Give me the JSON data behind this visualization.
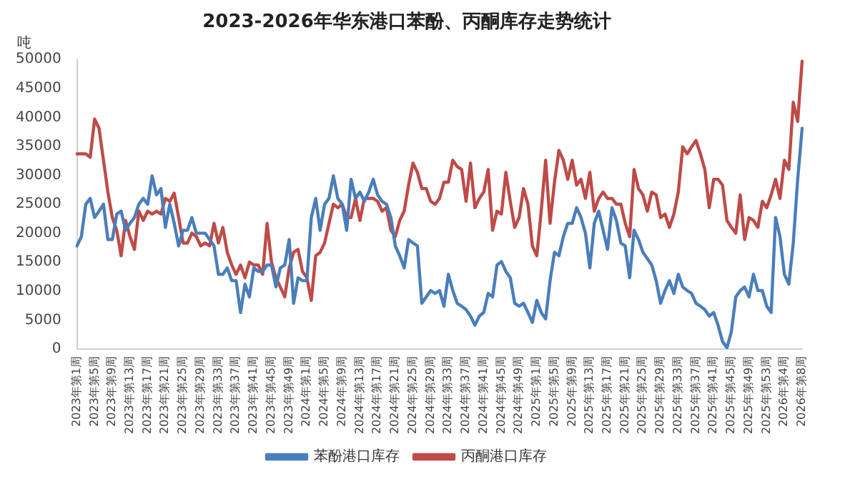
{
  "chart_data": {
    "type": "line",
    "title": "2023-2026年华东港口苯酚、丙酮库存走势统计",
    "ylabel": "吨",
    "categories": [
      "2023年第1周",
      null,
      null,
      null,
      "2023年第5周",
      null,
      null,
      null,
      "2023年第9周",
      null,
      null,
      null,
      "2023年第13周",
      null,
      null,
      null,
      "2023年第17周",
      null,
      null,
      null,
      "2023年第21周",
      null,
      null,
      null,
      "2023年第25周",
      null,
      null,
      null,
      "2023年第29周",
      null,
      null,
      null,
      "2023年第33周",
      null,
      null,
      null,
      "2023年第37周",
      null,
      null,
      null,
      "2023年第41周",
      null,
      null,
      null,
      "2023年第45周",
      null,
      null,
      null,
      "2023年第49周",
      null,
      null,
      null,
      "2024年第1周",
      null,
      null,
      null,
      "2024年第5周",
      null,
      null,
      null,
      "2024年第9周",
      null,
      null,
      null,
      "2024年第13周",
      null,
      null,
      null,
      "2024年第17周",
      null,
      null,
      null,
      "2024年第21周",
      null,
      null,
      null,
      "2024年第25周",
      null,
      null,
      null,
      "2024年第29周",
      null,
      null,
      null,
      "2024年第33周",
      null,
      null,
      null,
      "2024年第37周",
      null,
      null,
      null,
      "2024年第41周",
      null,
      null,
      null,
      "2024年第45周",
      null,
      null,
      null,
      "2024年第49周",
      null,
      null,
      null,
      "2025年第1周",
      null,
      null,
      null,
      "2025年第5周",
      null,
      null,
      null,
      "2025年第9周",
      null,
      null,
      null,
      "2025年第13周",
      null,
      null,
      null,
      "2025年第17周",
      null,
      null,
      null,
      "2025年第21周",
      null,
      null,
      null,
      "2025年第25周",
      null,
      null,
      null,
      "2025年第29周",
      null,
      null,
      null,
      "2025年第33周",
      null,
      null,
      null,
      "2025年第37周",
      null,
      null,
      null,
      "2025年第41周",
      null,
      null,
      null,
      "2025年第45周",
      null,
      null,
      null,
      "2025年第49周",
      null,
      null,
      null,
      "2025年第53周",
      null,
      null,
      null,
      "2026年第4周",
      null,
      null,
      null,
      "2026年第8周"
    ],
    "series": [
      {
        "name": "苯酚港口库存",
        "color": "#4a7ebb",
        "values": [
          17800,
          19400,
          25000,
          26000,
          22700,
          23800,
          25000,
          18900,
          18900,
          23300,
          23800,
          20500,
          21700,
          22700,
          25000,
          26000,
          25000,
          29900,
          26600,
          27700,
          21000,
          25000,
          21700,
          17800,
          20500,
          20500,
          22700,
          20000,
          20000,
          20000,
          18900,
          17800,
          12900,
          12900,
          14000,
          11800,
          11800,
          6300,
          11200,
          9000,
          14000,
          13400,
          13400,
          14500,
          14500,
          10700,
          14000,
          14500,
          18900,
          7900,
          12300,
          11800,
          11800,
          22700,
          26000,
          20500,
          25000,
          26000,
          29900,
          26000,
          25000,
          20500,
          29300,
          26000,
          27100,
          25500,
          27100,
          29300,
          26600,
          25500,
          25000,
          22700,
          17800,
          16100,
          14000,
          18900,
          18300,
          17800,
          7900,
          9000,
          10100,
          9600,
          10100,
          7400,
          12900,
          10100,
          7900,
          7400,
          6800,
          5700,
          4100,
          5700,
          6300,
          9600,
          9000,
          14500,
          15100,
          13400,
          12300,
          7900,
          7400,
          7900,
          6300,
          4600,
          8400,
          6300,
          5200,
          11800,
          16700,
          16100,
          19400,
          21700,
          21700,
          24400,
          22700,
          20000,
          14000,
          21700,
          23800,
          20500,
          17200,
          24400,
          22200,
          18300,
          17800,
          12300,
          20500,
          18900,
          16700,
          15600,
          14500,
          11800,
          7900,
          10100,
          11800,
          9600,
          12900,
          10700,
          10100,
          9600,
          7900,
          7400,
          6800,
          5700,
          6300,
          4100,
          1300,
          200,
          3000,
          9000,
          10100,
          10700,
          9000,
          12900,
          10100,
          10100,
          7400,
          6300,
          22700,
          19400,
          12900,
          11200,
          18300,
          29300,
          38100
        ]
      },
      {
        "name": "丙酮港口库存",
        "color": "#be4b48",
        "values": [
          33700,
          33700,
          33700,
          33100,
          39700,
          38100,
          32600,
          27100,
          22700,
          20500,
          16100,
          22200,
          19400,
          17200,
          23800,
          22200,
          23800,
          23300,
          23800,
          23300,
          26000,
          25500,
          26900,
          22700,
          18300,
          18300,
          20000,
          19400,
          17800,
          18300,
          17800,
          21700,
          18300,
          21000,
          16700,
          14500,
          12900,
          14500,
          12300,
          15000,
          14500,
          14500,
          12900,
          21700,
          15000,
          12300,
          10700,
          9000,
          14000,
          16700,
          17200,
          13400,
          12300,
          8400,
          16100,
          16700,
          18300,
          21700,
          25000,
          24400,
          25000,
          22700,
          22700,
          26000,
          22200,
          26000,
          26000,
          26000,
          25500,
          23800,
          24400,
          20500,
          19400,
          22200,
          23800,
          28300,
          32100,
          30500,
          27700,
          27700,
          25500,
          25000,
          26000,
          28800,
          28800,
          32600,
          31500,
          31000,
          25500,
          32100,
          24400,
          26000,
          27100,
          31000,
          20500,
          23800,
          23300,
          30500,
          25500,
          21000,
          22700,
          27700,
          25000,
          17800,
          16100,
          23800,
          32600,
          21700,
          28800,
          34300,
          32600,
          29300,
          32600,
          28300,
          29300,
          26000,
          30500,
          23800,
          26000,
          27100,
          26000,
          26000,
          25000,
          25000,
          21700,
          19400,
          31000,
          27700,
          26600,
          23800,
          27100,
          26600,
          22700,
          23300,
          21000,
          23300,
          27100,
          34900,
          33700,
          34900,
          36000,
          33700,
          31000,
          24400,
          29300,
          29300,
          28300,
          22200,
          21000,
          20000,
          26600,
          18900,
          22700,
          22200,
          21000,
          25500,
          24400,
          26600,
          29300,
          26000,
          32600,
          31000,
          42600,
          39300,
          49700
        ]
      }
    ],
    "ylim": [
      0,
      50000
    ],
    "yticks": [
      0,
      5000,
      10000,
      15000,
      20000,
      25000,
      30000,
      35000,
      40000,
      45000,
      50000
    ],
    "grid": false,
    "legend": "bottom",
    "marker": "none",
    "line_style": "solid"
  }
}
